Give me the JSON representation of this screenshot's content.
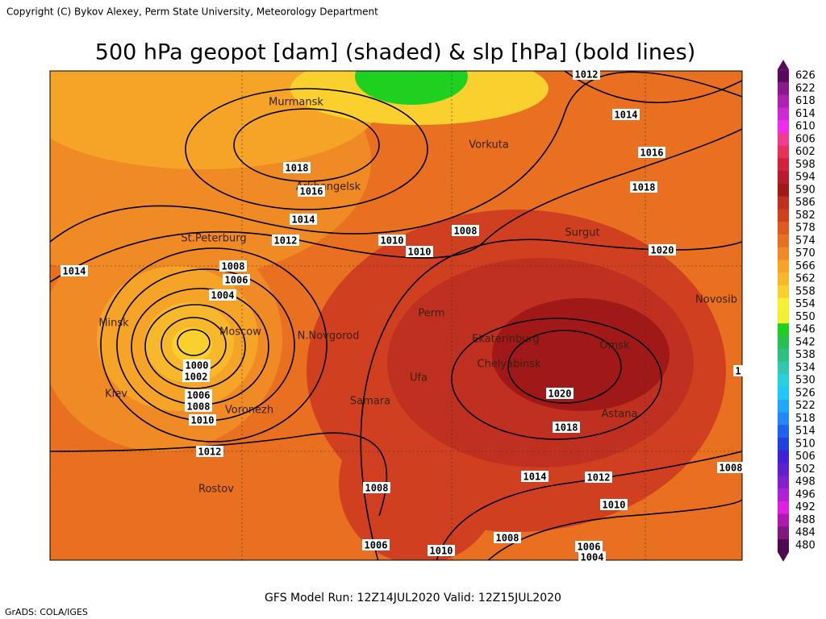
{
  "header": {
    "copyright": "Copyright (C) Bykov Alexey, Perm State University, Meteorology Department",
    "title": "500 hPa geopot [dam] (shaded) & slp [hPa] (bold lines)"
  },
  "map": {
    "cities": [
      "Murmansk",
      "Arkhangelsk",
      "Vorkuta",
      "St.Peterburg",
      "Surgut",
      "Perm",
      "Minsk",
      "Moscow",
      "N.Novgorod",
      "Ekaterinburg",
      "Omsk",
      "Novosib",
      "Chelyabinsk",
      "Ufa",
      "Kiev",
      "Voronezh",
      "Samara",
      "Astana",
      "Rostov"
    ],
    "isobar_labels": [
      "1012",
      "1014",
      "1016",
      "1018",
      "1020",
      "1018",
      "1016",
      "1014",
      "1012",
      "1010",
      "1010",
      "1008",
      "1014",
      "1008",
      "1006",
      "1004",
      "1000",
      "1002",
      "1006",
      "1008",
      "1010",
      "1012",
      "1020",
      "1018",
      "1014",
      "1012",
      "1010",
      "1008",
      "1008",
      "1006",
      "1010",
      "1006",
      "1004",
      "1008",
      "1"
    ]
  },
  "colorbar": {
    "labels": [
      "626",
      "622",
      "618",
      "614",
      "610",
      "606",
      "602",
      "598",
      "594",
      "590",
      "586",
      "582",
      "578",
      "574",
      "570",
      "566",
      "562",
      "558",
      "554",
      "550",
      "546",
      "542",
      "538",
      "534",
      "530",
      "526",
      "522",
      "518",
      "514",
      "510",
      "506",
      "502",
      "498",
      "496",
      "492",
      "488",
      "484",
      "480"
    ],
    "colors": [
      "#5a0a5a",
      "#8a1a8a",
      "#b020b0",
      "#d028d0",
      "#f02cf0",
      "#f03c90",
      "#e8305a",
      "#d42040",
      "#b81c2c",
      "#a01818",
      "#c03020",
      "#d04020",
      "#e05a20",
      "#e87020",
      "#f08a24",
      "#f5a428",
      "#f8b82c",
      "#fad02e",
      "#f8f030",
      "#f0f030",
      "#20d020",
      "#28c050",
      "#30c080",
      "#30c8b0",
      "#28d0e0",
      "#20c8f8",
      "#20a8f8",
      "#2088f8",
      "#2060f0",
      "#2040e0",
      "#4020d8",
      "#6020d0",
      "#8020d0",
      "#b020d8",
      "#e020e0",
      "#b018b0",
      "#801880",
      "#500a50"
    ]
  },
  "footer": {
    "run": "GFS Model Run: 12Z14JUL2020 Valid: 12Z15JUL2020",
    "grads": "GrADS: COLA/IGES"
  }
}
